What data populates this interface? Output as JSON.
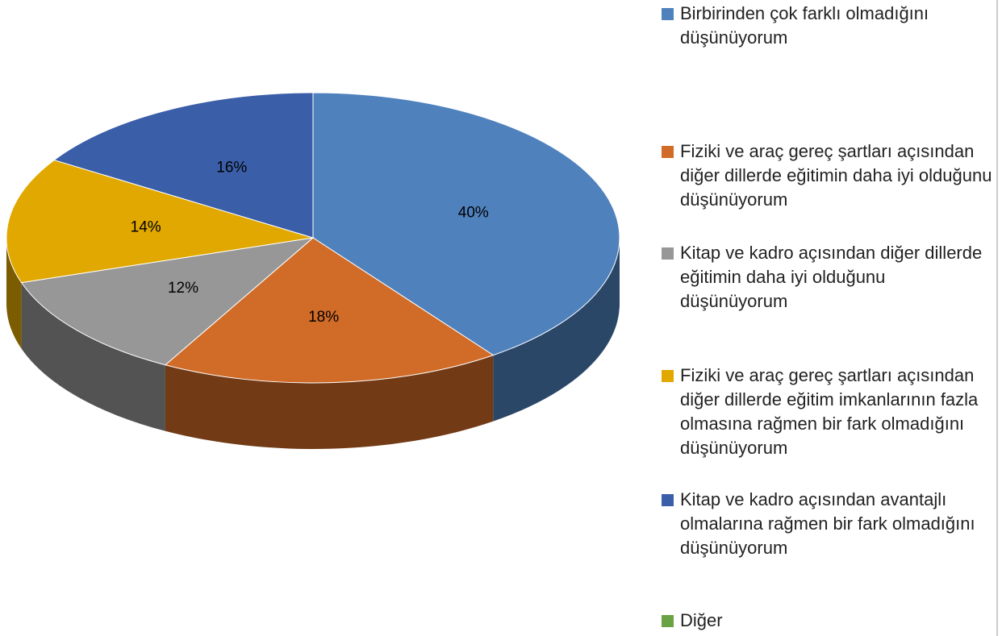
{
  "chart_data": {
    "type": "pie",
    "categories": [
      "Birbirinden çok farklı olmadığını düşünüyorum",
      "Fiziki ve araç gereç şartları açısından diğer dillerde eğitimin daha iyi olduğunu düşünüyorum",
      "Kitap ve kadro açısından diğer dillerde eğitimin daha iyi olduğunu düşünüyorum",
      "Fiziki ve araç gereç şartları açısından diğer dillerde eğitim imkanlarının fazla olmasına rağmen bir fark olmadığını düşünüyorum",
      "Kitap ve kadro açısından avantajlı olmalarına rağmen bir fark olmadığını düşünüyorum",
      "Diğer"
    ],
    "values": [
      40,
      18,
      12,
      14,
      16,
      0
    ],
    "value_labels": [
      "40%",
      "18%",
      "12%",
      "14%",
      "16%",
      null
    ],
    "colors": [
      "#4f81bd",
      "#d06b28",
      "#979797",
      "#e0a800",
      "#3b5ea8",
      "#6aa343"
    ],
    "legend": "right"
  }
}
